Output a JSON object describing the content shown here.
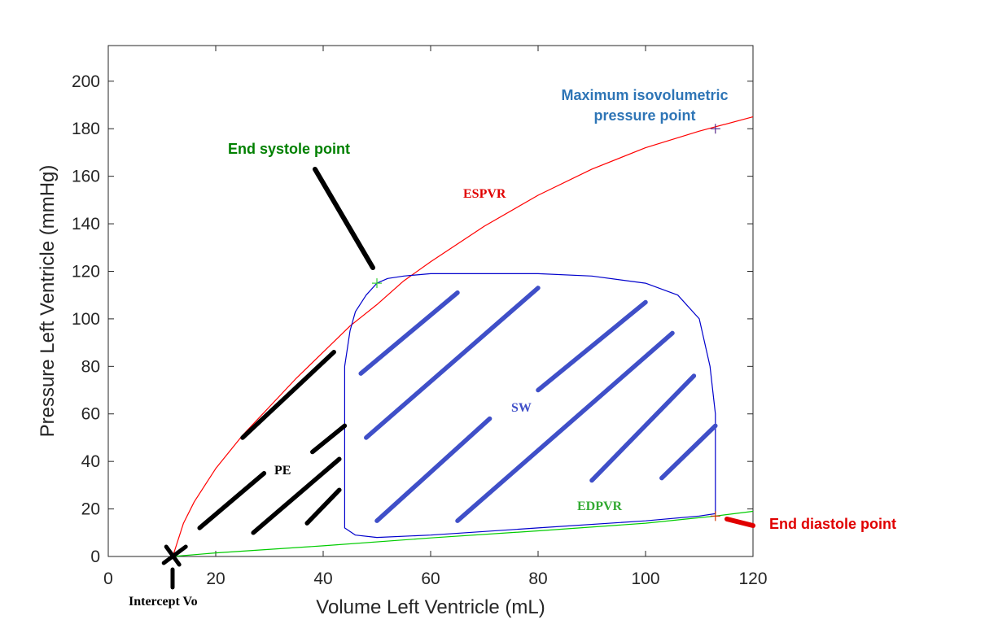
{
  "chart_data": {
    "type": "line",
    "title": "",
    "xlabel": "Volume Left Ventricle (mL)",
    "ylabel": "Pressure Left Ventricle (mmHg)",
    "xlim": [
      0,
      120
    ],
    "ylim": [
      0,
      215
    ],
    "x_ticks": [
      0,
      20,
      40,
      60,
      80,
      100,
      120
    ],
    "y_ticks": [
      0,
      20,
      40,
      60,
      80,
      100,
      120,
      140,
      160,
      180,
      200
    ],
    "grid": false,
    "colors": {
      "espvr": "#ff0000",
      "edpvr": "#00cc00",
      "loop": "#0000cc",
      "hatch_sw": "#3f4fc8",
      "hatch_pe": "#000000",
      "label_green": "#008000",
      "label_blue": "#2e75b6",
      "label_red": "#e00000"
    },
    "series": [
      {
        "name": "ESPVR",
        "x": [
          12,
          14,
          16,
          20,
          25,
          30,
          35,
          40,
          45,
          50,
          55,
          60,
          70,
          80,
          90,
          100,
          110,
          120
        ],
        "y": [
          0,
          14,
          23,
          37,
          51,
          63,
          75,
          86,
          97,
          106,
          116,
          124,
          139,
          152,
          163,
          172,
          179,
          185
        ]
      },
      {
        "name": "EDPVR",
        "x": [
          12,
          20,
          40,
          60,
          80,
          100,
          113,
          120
        ],
        "y": [
          0,
          1.5,
          4.5,
          7.8,
          10.8,
          14,
          17,
          19
        ]
      },
      {
        "name": "PV loop",
        "x": [
          50,
          52,
          55,
          60,
          70,
          80,
          90,
          100,
          106,
          110,
          112,
          113,
          113,
          113,
          113,
          110,
          100,
          80,
          60,
          50,
          46,
          44,
          44,
          44,
          44,
          45,
          46,
          48,
          50
        ],
        "y": [
          115,
          117,
          118,
          119,
          119,
          119,
          118,
          115,
          110,
          100,
          80,
          60,
          40,
          25,
          18,
          17,
          15,
          12,
          9,
          8,
          9,
          12,
          30,
          60,
          80,
          95,
          103,
          110,
          115
        ]
      }
    ],
    "points": [
      {
        "name": "End systole point",
        "x": 50,
        "y": 115
      },
      {
        "name": "Maximum isovolumetric pressure point",
        "x": 113,
        "y": 180
      },
      {
        "name": "End diastole point",
        "x": 113,
        "y": 17
      },
      {
        "name": "Intercept Vo",
        "x": 12,
        "y": 0
      }
    ],
    "regions": [
      {
        "name": "SW",
        "x": 76,
        "y": 64
      },
      {
        "name": "PE",
        "x": 33,
        "y": 37
      }
    ],
    "hatch_sw": [
      [
        47,
        77,
        65,
        111
      ],
      [
        48,
        50,
        80,
        113
      ],
      [
        80,
        70,
        100,
        107
      ],
      [
        50,
        15,
        71,
        58
      ],
      [
        65,
        15,
        105,
        94
      ],
      [
        90,
        32,
        109,
        76
      ],
      [
        103,
        33,
        113,
        55
      ]
    ],
    "hatch_pe": [
      [
        25,
        50,
        42,
        86
      ],
      [
        17,
        12,
        29,
        35
      ],
      [
        38,
        44,
        44,
        55
      ],
      [
        27,
        10,
        43,
        41
      ],
      [
        37,
        14,
        43,
        28
      ]
    ],
    "annotations": {
      "end_systole": "End systole point",
      "max_isovolumetric_line1": "Maximum isovolumetric",
      "max_isovolumetric_line2": "pressure point",
      "end_diastole": "End diastole point",
      "intercept": "Intercept Vo",
      "espvr": "ESPVR",
      "edpvr": "EDPVR",
      "sw": "SW",
      "pe": "PE"
    }
  }
}
